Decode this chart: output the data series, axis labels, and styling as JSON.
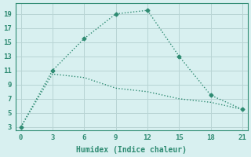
{
  "xlabel": "Humidex (Indice chaleur)",
  "line1_x": [
    0,
    3,
    6,
    9,
    12,
    15,
    18,
    21
  ],
  "line1_y": [
    3,
    11,
    15.5,
    19,
    19.5,
    13,
    7.5,
    5.5
  ],
  "line2_x": [
    0,
    3,
    6,
    9,
    12,
    15,
    18,
    21
  ],
  "line2_y": [
    3,
    10.5,
    10,
    8.5,
    8,
    7,
    6.5,
    5.5
  ],
  "line_color": "#2e8b72",
  "bg_color": "#d8f0f0",
  "grid_color": "#b8d4d4",
  "xlim": [
    -0.5,
    21.5
  ],
  "ylim": [
    2.5,
    20.5
  ],
  "xticks": [
    0,
    3,
    6,
    9,
    12,
    15,
    18,
    21
  ],
  "yticks": [
    3,
    5,
    7,
    9,
    11,
    13,
    15,
    17,
    19
  ]
}
